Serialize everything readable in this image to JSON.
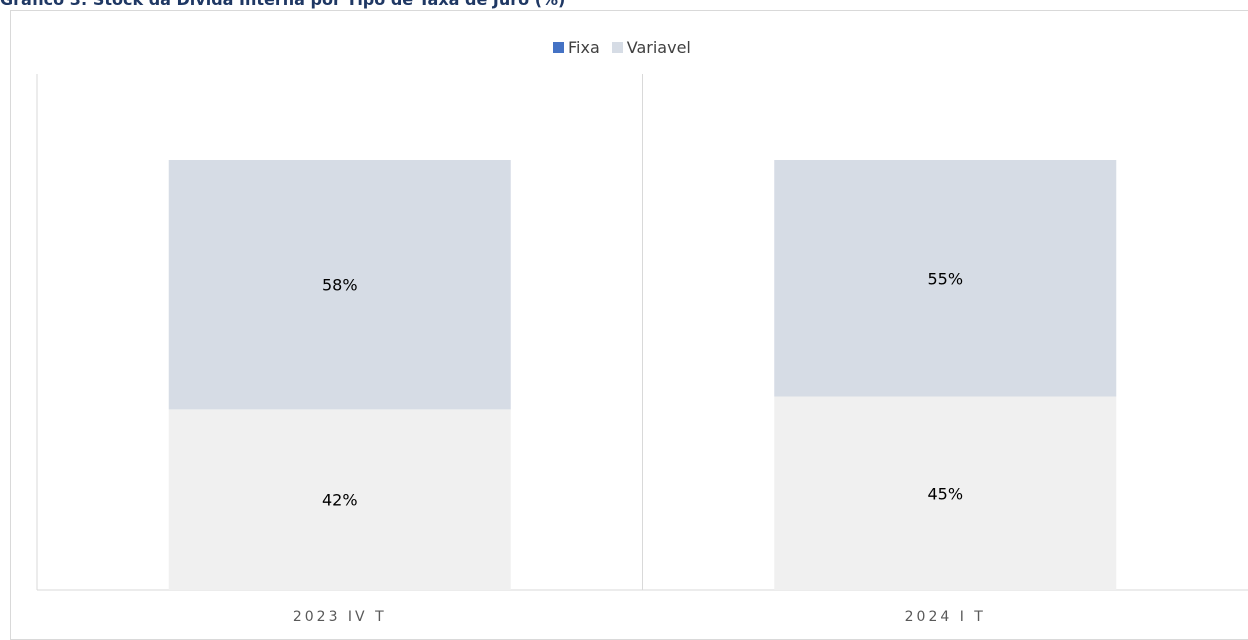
{
  "chart_data": {
    "type": "bar",
    "stacked": true,
    "title": "Gráfico 3: Stock da Dívida Interna por Tipo de Taxa de Juro (%)",
    "categories": [
      "2023 IV T",
      "2024 I T"
    ],
    "series": [
      {
        "name": "Fixa",
        "values": [
          42,
          45
        ],
        "color": "#4472c4",
        "display_color": "#f0f0f0"
      },
      {
        "name": "Variavel",
        "values": [
          58,
          55
        ],
        "color": "#d6dce5",
        "display_color": "#d6dce5"
      }
    ],
    "data_labels": [
      [
        "42%",
        "45%"
      ],
      [
        "58%",
        "55%"
      ]
    ],
    "ylim": [
      0,
      100
    ],
    "legend_position": "top",
    "grid": false
  }
}
